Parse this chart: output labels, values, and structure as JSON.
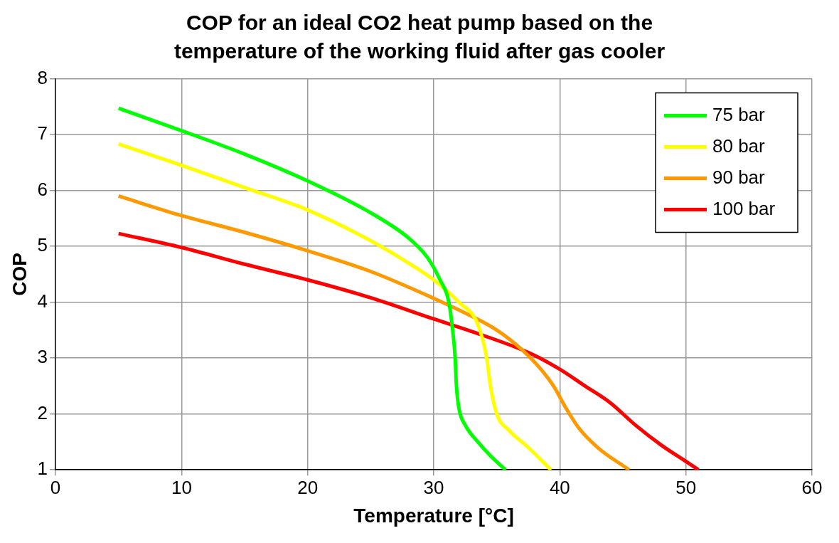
{
  "chart_data": {
    "type": "line",
    "title": "COP for an ideal CO2 heat pump based on the temperature of the working fluid after gas cooler",
    "xlabel": "Temperature [°C]",
    "ylabel": "COP",
    "xlim": [
      0,
      60
    ],
    "xticks": [
      0,
      10,
      20,
      30,
      40,
      50,
      60
    ],
    "ylim": [
      1,
      8
    ],
    "yticks": [
      1,
      2,
      3,
      4,
      5,
      6,
      7,
      8
    ],
    "grid": true,
    "legend": "top right",
    "marker": "none",
    "line_style": "solid",
    "series": [
      {
        "name": "75 bar",
        "color": "#00ff00",
        "x": [
          5,
          10,
          15,
          20,
          25,
          28,
          29.5,
          30.5,
          31.2,
          31.5,
          31.7,
          31.8,
          32,
          32.5,
          33.5,
          34.5,
          35.7
        ],
        "values": [
          7.47,
          7.07,
          6.65,
          6.17,
          5.6,
          5.15,
          4.8,
          4.4,
          4.0,
          3.5,
          3.0,
          2.5,
          2.1,
          1.8,
          1.5,
          1.25,
          1.0
        ]
      },
      {
        "name": "80 bar",
        "color": "#ffff00",
        "x": [
          5,
          10,
          15,
          20,
          25,
          28,
          30,
          32,
          33.5,
          34.2,
          34.5,
          35,
          36,
          37.5,
          39.3
        ],
        "values": [
          6.83,
          6.45,
          6.05,
          5.65,
          5.1,
          4.7,
          4.4,
          4.0,
          3.6,
          3.0,
          2.5,
          2.0,
          1.7,
          1.4,
          1.0
        ]
      },
      {
        "name": "90 bar",
        "color": "#ff9900",
        "x": [
          5,
          10,
          15,
          20,
          25,
          30,
          33,
          35,
          37,
          38.5,
          39.5,
          40.5,
          41.5,
          43,
          45.5
        ],
        "values": [
          5.9,
          5.55,
          5.25,
          4.92,
          4.55,
          4.07,
          3.75,
          3.5,
          3.15,
          2.8,
          2.5,
          2.1,
          1.75,
          1.4,
          1.0
        ]
      },
      {
        "name": "100 bar",
        "color": "#ff0000",
        "x": [
          5,
          10,
          15,
          20,
          25,
          30,
          34,
          37.5,
          40,
          42,
          44,
          46,
          48,
          50,
          51
        ],
        "values": [
          5.23,
          4.98,
          4.68,
          4.4,
          4.08,
          3.7,
          3.4,
          3.1,
          2.8,
          2.5,
          2.2,
          1.8,
          1.45,
          1.15,
          1.0
        ]
      }
    ]
  }
}
